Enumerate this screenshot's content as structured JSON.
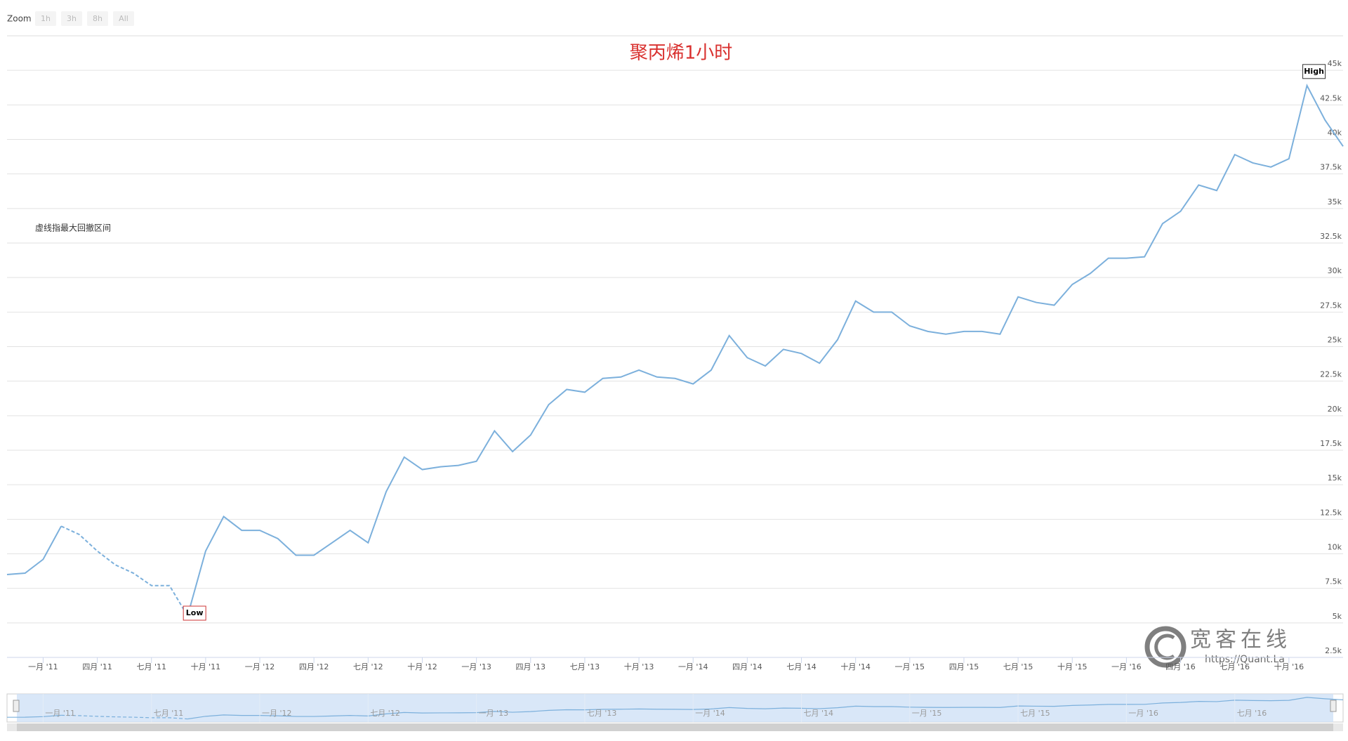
{
  "chart_data": {
    "type": "line",
    "title": "聚丙烯1小时",
    "zoom": {
      "label": "Zoom",
      "buttons": [
        "1h",
        "3h",
        "8h",
        "All"
      ]
    },
    "annotation": "虚线指最大回撤区间",
    "high_label": "High",
    "low_label": "Low",
    "watermark": {
      "title": "宽客在线",
      "url": "https://Quant.La"
    },
    "x": [
      "2010-11",
      "2010-12",
      "2011-01",
      "2011-02",
      "2011-03",
      "2011-04",
      "2011-05",
      "2011-06",
      "2011-07",
      "2011-08",
      "2011-09",
      "2011-10",
      "2011-11",
      "2011-12",
      "2012-01",
      "2012-02",
      "2012-03",
      "2012-04",
      "2012-05",
      "2012-06",
      "2012-07",
      "2012-08",
      "2012-09",
      "2012-10",
      "2012-11",
      "2012-12",
      "2013-01",
      "2013-02",
      "2013-03",
      "2013-04",
      "2013-05",
      "2013-06",
      "2013-07",
      "2013-08",
      "2013-09",
      "2013-10",
      "2013-11",
      "2013-12",
      "2014-01",
      "2014-02",
      "2014-03",
      "2014-04",
      "2014-05",
      "2014-06",
      "2014-07",
      "2014-08",
      "2014-09",
      "2014-10",
      "2014-11",
      "2014-12",
      "2015-01",
      "2015-02",
      "2015-03",
      "2015-04",
      "2015-05",
      "2015-06",
      "2015-07",
      "2015-08",
      "2015-09",
      "2015-10",
      "2015-11",
      "2015-12",
      "2016-01",
      "2016-02",
      "2016-03",
      "2016-04",
      "2016-05",
      "2016-06",
      "2016-07",
      "2016-08",
      "2016-09",
      "2016-10",
      "2016-11",
      "2016-12",
      "2017-01"
    ],
    "series": [
      {
        "color": "#7cb0dc",
        "dash": false,
        "values": [
          8500,
          8600,
          9600,
          12000,
          null,
          null,
          null,
          null,
          null,
          null,
          5500,
          10200,
          12700,
          11700,
          11700,
          11100,
          9900,
          9900,
          10800,
          11700,
          10800,
          14500,
          17000,
          16100,
          16300,
          16400,
          16700,
          18900,
          17400,
          18600,
          20800,
          21900,
          21700,
          22700,
          22800,
          23300,
          22800,
          22700,
          22300,
          23300,
          25800,
          24200,
          23600,
          24800,
          24500,
          23800,
          25500,
          28300,
          27500,
          27500,
          26500,
          26100,
          25900,
          26100,
          26100,
          25900,
          28600,
          28200,
          28000,
          29500,
          30300,
          31400,
          31400,
          31500,
          33900,
          34800,
          36700,
          36300,
          38900,
          38300,
          38000,
          38600,
          43900,
          41400,
          39500
        ]
      },
      {
        "color": "#7cb0dc",
        "dash": true,
        "values": [
          null,
          null,
          null,
          12000,
          11400,
          10200,
          9200,
          8600,
          7700,
          7700,
          5500,
          null,
          null,
          null,
          null,
          null,
          null,
          null,
          null,
          null,
          null,
          null,
          null,
          null,
          null,
          null,
          null,
          null,
          null,
          null,
          null,
          null,
          null,
          null,
          null,
          null,
          null,
          null,
          null,
          null,
          null,
          null,
          null,
          null,
          null,
          null,
          null,
          null,
          null,
          null,
          null,
          null,
          null,
          null,
          null,
          null,
          null,
          null,
          null,
          null,
          null,
          null,
          null,
          null,
          null,
          null,
          null,
          null,
          null,
          null,
          null,
          null,
          null,
          null,
          null
        ]
      }
    ],
    "xlim": [
      "2010-11",
      "2017-01"
    ],
    "xticks": [
      {
        "value": "2011-01",
        "label": "一月 '11"
      },
      {
        "value": "2011-04",
        "label": "四月 '11"
      },
      {
        "value": "2011-07",
        "label": "七月 '11"
      },
      {
        "value": "2011-10",
        "label": "十月 '11"
      },
      {
        "value": "2012-01",
        "label": "一月 '12"
      },
      {
        "value": "2012-04",
        "label": "四月 '12"
      },
      {
        "value": "2012-07",
        "label": "七月 '12"
      },
      {
        "value": "2012-10",
        "label": "十月 '12"
      },
      {
        "value": "2013-01",
        "label": "一月 '13"
      },
      {
        "value": "2013-04",
        "label": "四月 '13"
      },
      {
        "value": "2013-07",
        "label": "七月 '13"
      },
      {
        "value": "2013-10",
        "label": "十月 '13"
      },
      {
        "value": "2014-01",
        "label": "一月 '14"
      },
      {
        "value": "2014-04",
        "label": "四月 '14"
      },
      {
        "value": "2014-07",
        "label": "七月 '14"
      },
      {
        "value": "2014-10",
        "label": "十月 '14"
      },
      {
        "value": "2015-01",
        "label": "一月 '15"
      },
      {
        "value": "2015-04",
        "label": "四月 '15"
      },
      {
        "value": "2015-07",
        "label": "七月 '15"
      },
      {
        "value": "2015-10",
        "label": "十月 '15"
      },
      {
        "value": "2016-01",
        "label": "一月 '16"
      },
      {
        "value": "2016-04",
        "label": "四月 '16"
      },
      {
        "value": "2016-07",
        "label": "七月 '16"
      },
      {
        "value": "2016-10",
        "label": "十月 '16"
      }
    ],
    "navigator_ticks": [
      {
        "value": "2011-01",
        "label": "一月 '11"
      },
      {
        "value": "2011-07",
        "label": "七月 '11"
      },
      {
        "value": "2012-01",
        "label": "一月 '12"
      },
      {
        "value": "2012-07",
        "label": "七月 '12"
      },
      {
        "value": "2013-01",
        "label": "一月 '13"
      },
      {
        "value": "2013-07",
        "label": "七月 '13"
      },
      {
        "value": "2014-01",
        "label": "一月 '14"
      },
      {
        "value": "2014-07",
        "label": "七月 '14"
      },
      {
        "value": "2015-01",
        "label": "一月 '15"
      },
      {
        "value": "2015-07",
        "label": "七月 '15"
      },
      {
        "value": "2016-01",
        "label": "一月 '16"
      },
      {
        "value": "2016-07",
        "label": "七月 '16"
      }
    ],
    "ylim": [
      2500,
      47500
    ],
    "yticks": [
      {
        "value": 2500,
        "label": "2.5k"
      },
      {
        "value": 5000,
        "label": "5k"
      },
      {
        "value": 7500,
        "label": "7.5k"
      },
      {
        "value": 10000,
        "label": "10k"
      },
      {
        "value": 12500,
        "label": "12.5k"
      },
      {
        "value": 15000,
        "label": "15k"
      },
      {
        "value": 17500,
        "label": "17.5k"
      },
      {
        "value": 20000,
        "label": "20k"
      },
      {
        "value": 22500,
        "label": "22.5k"
      },
      {
        "value": 25000,
        "label": "25k"
      },
      {
        "value": 27500,
        "label": "27.5k"
      },
      {
        "value": 30000,
        "label": "30k"
      },
      {
        "value": 32500,
        "label": "32.5k"
      },
      {
        "value": 35000,
        "label": "35k"
      },
      {
        "value": 37500,
        "label": "37.5k"
      },
      {
        "value": 40000,
        "label": "40k"
      },
      {
        "value": 42500,
        "label": "42.5k"
      },
      {
        "value": 45000,
        "label": "45k"
      }
    ],
    "grid": true
  }
}
